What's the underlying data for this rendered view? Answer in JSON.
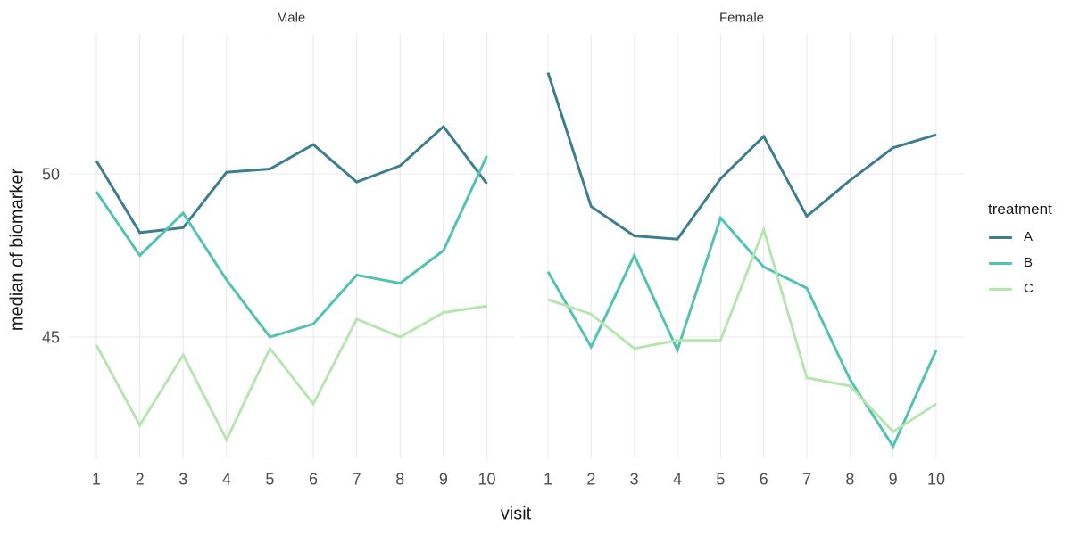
{
  "chart_data": {
    "type": "line",
    "title": "",
    "xlabel": "visit",
    "ylabel": "median of biomarker",
    "x": [
      1,
      2,
      3,
      4,
      5,
      6,
      7,
      8,
      9,
      10
    ],
    "yticks": [
      45,
      50
    ],
    "ylim": [
      41.3,
      54.3
    ],
    "grid": "major gridlines only, light gray on white, no axis lines, no tick marks",
    "legend": {
      "title": "treatment",
      "position": "right"
    },
    "facets": [
      {
        "label": "Male",
        "series": [
          {
            "name": "A",
            "color": "#3d7e8e",
            "values": [
              50.4,
              48.2,
              48.35,
              50.05,
              50.15,
              50.9,
              49.75,
              50.25,
              51.45,
              49.7
            ]
          },
          {
            "name": "B",
            "color": "#52c2b2",
            "values": [
              49.45,
              47.5,
              48.8,
              46.75,
              45.0,
              45.4,
              46.9,
              46.65,
              47.65,
              50.55
            ]
          },
          {
            "name": "C",
            "color": "#b6e5af",
            "values": [
              44.75,
              42.3,
              44.45,
              41.85,
              44.65,
              42.95,
              45.55,
              45.0,
              45.75,
              45.95
            ]
          }
        ]
      },
      {
        "label": "Female",
        "series": [
          {
            "name": "A",
            "color": "#3d7e8e",
            "values": [
              53.1,
              49.0,
              48.1,
              48.0,
              49.85,
              51.15,
              48.7,
              49.8,
              50.8,
              51.2
            ]
          },
          {
            "name": "B",
            "color": "#52c2b2",
            "values": [
              47.0,
              44.7,
              47.5,
              44.6,
              48.65,
              47.15,
              46.5,
              43.7,
              41.65,
              44.6
            ]
          },
          {
            "name": "C",
            "color": "#b6e5af",
            "values": [
              46.15,
              45.7,
              44.65,
              44.9,
              44.9,
              48.3,
              43.75,
              43.5,
              42.1,
              42.95
            ]
          }
        ]
      }
    ]
  },
  "styles": {
    "background": "#ffffff",
    "grid_color": "#e8e8e8",
    "tick_text_color": "#4d4d4d",
    "axis_title_color": "#1a1a1a",
    "strip_text_color": "#333333",
    "series_colors": {
      "A": "#3d7e8e",
      "B": "#52c2b2",
      "C": "#b6e5af"
    }
  }
}
